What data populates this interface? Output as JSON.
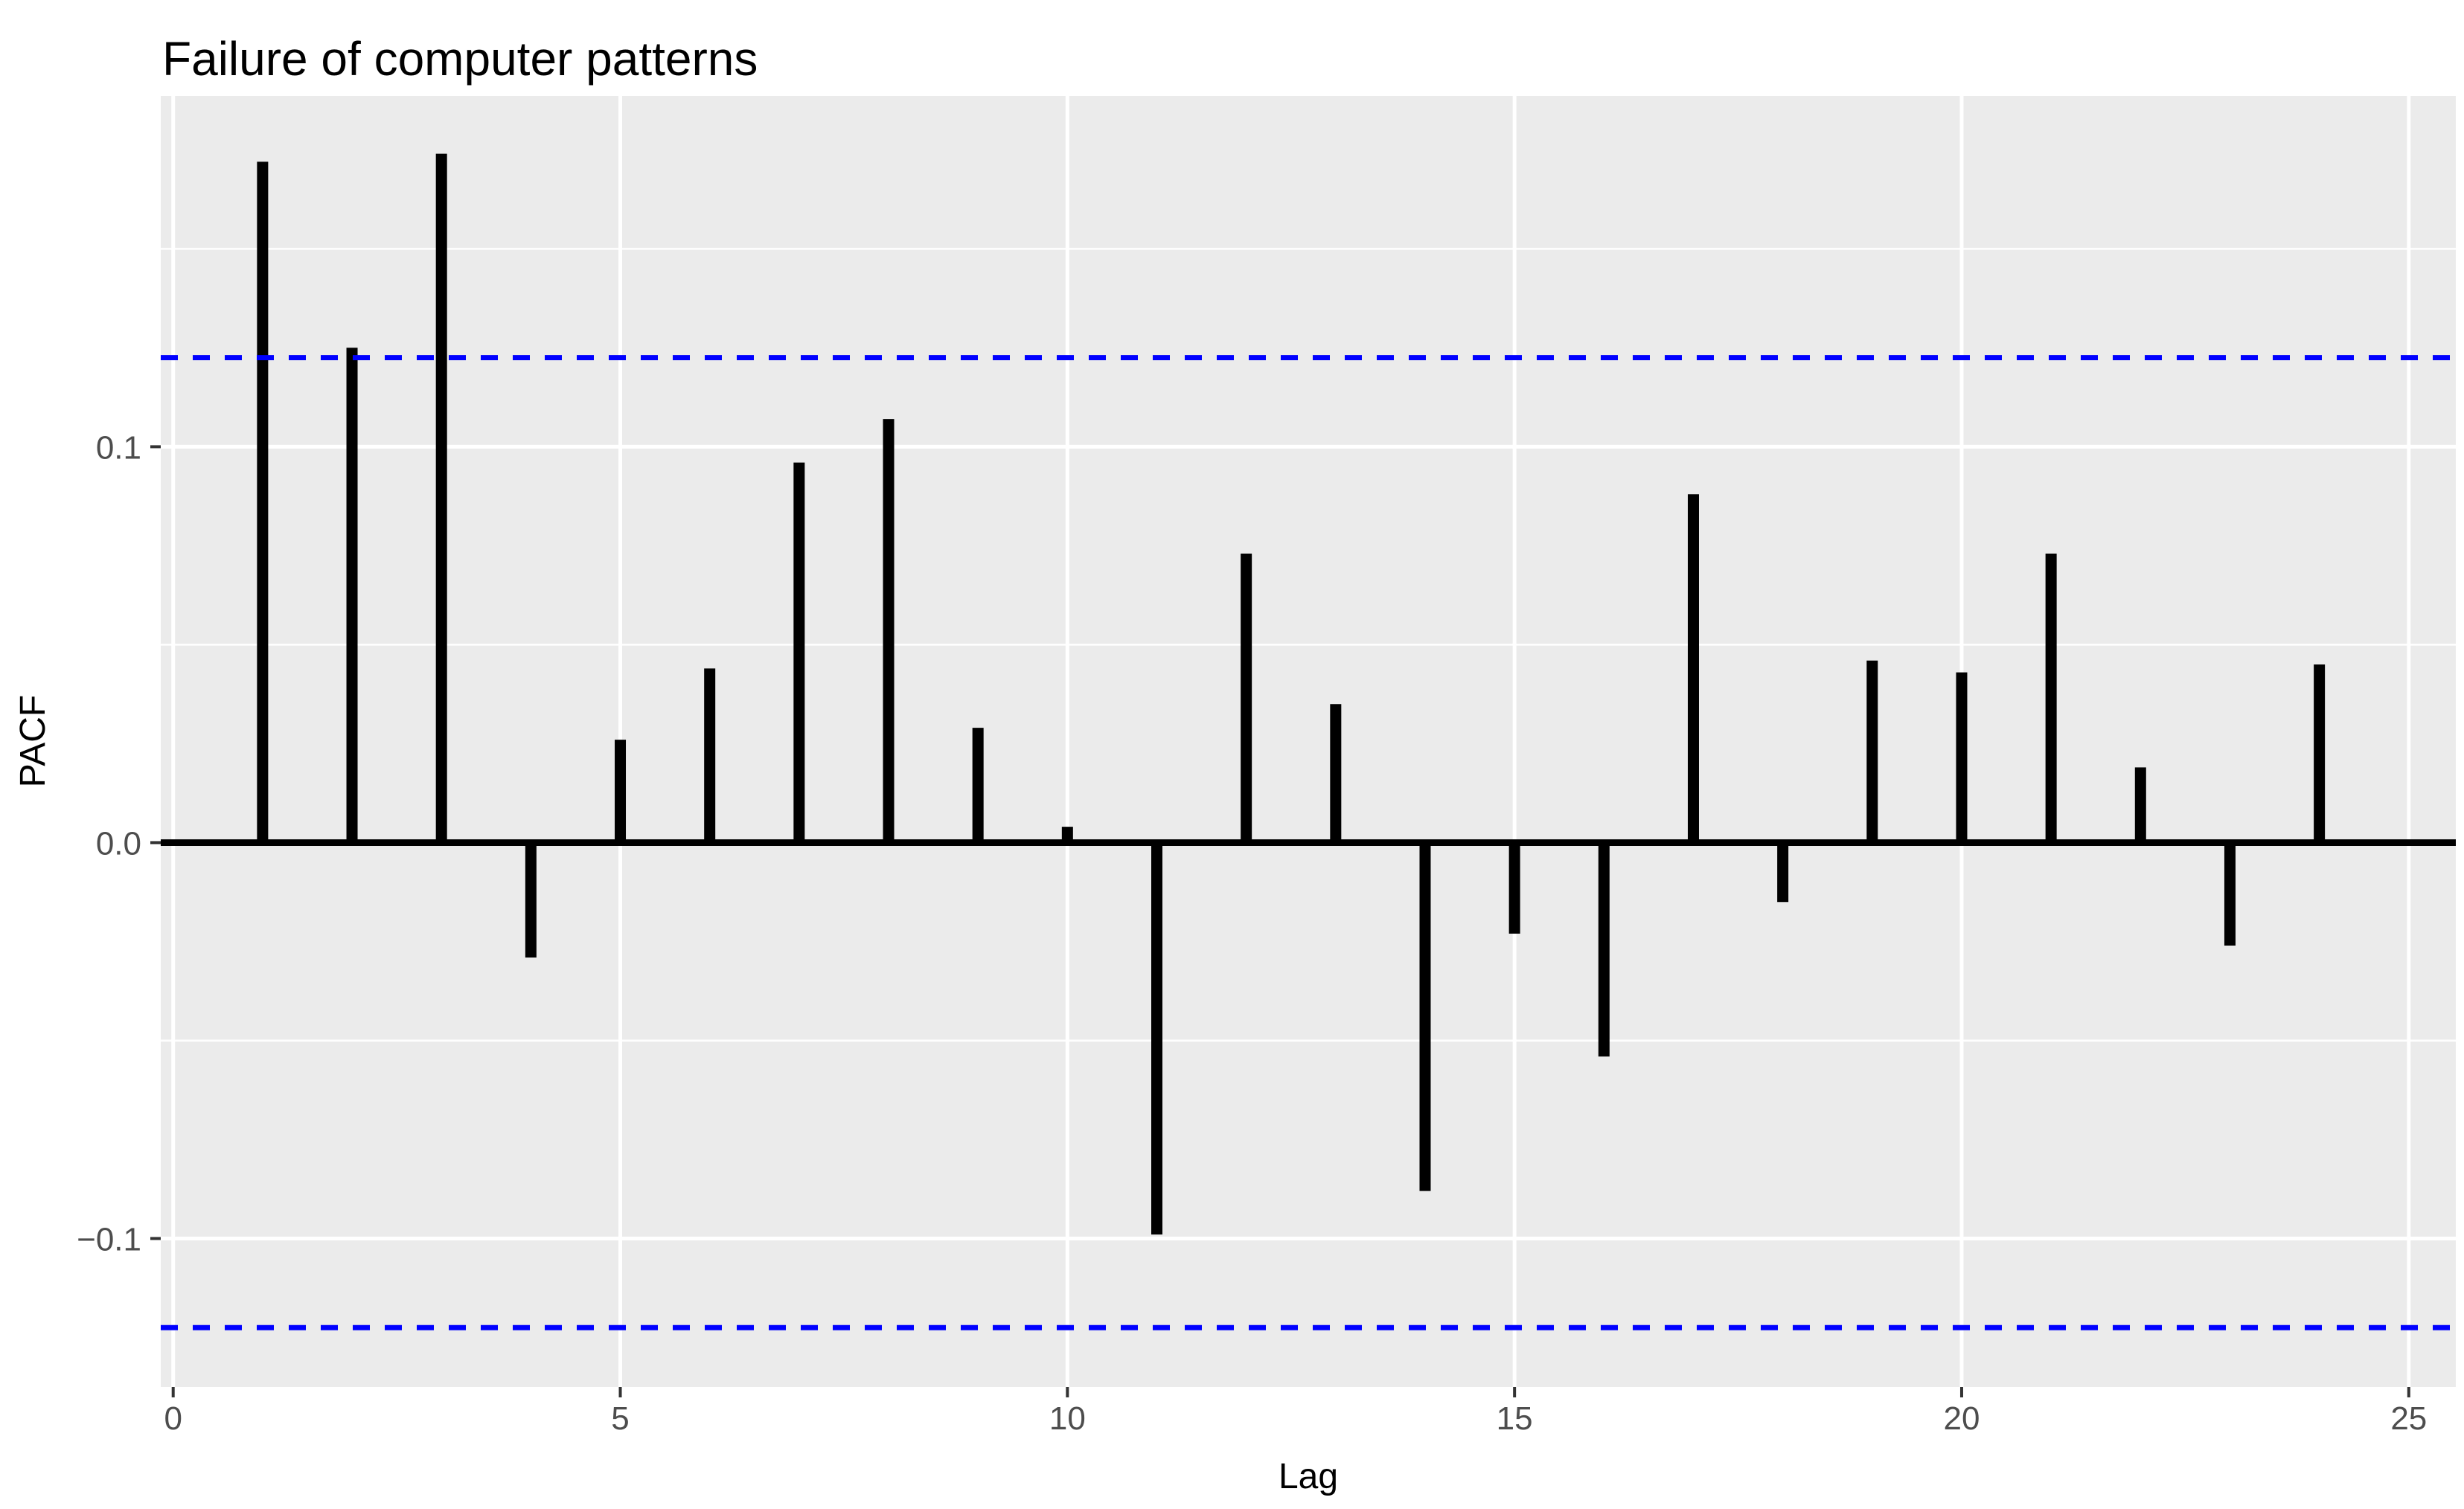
{
  "title": "Failure of computer patterns",
  "chart_data": {
    "type": "bar",
    "title": "Failure of computer patterns",
    "xlabel": "Lag",
    "ylabel": "PACF",
    "x": [
      1,
      2,
      3,
      4,
      5,
      6,
      7,
      8,
      9,
      10,
      11,
      12,
      13,
      14,
      15,
      16,
      17,
      18,
      19,
      20,
      21,
      22,
      23,
      24
    ],
    "values": [
      0.172,
      0.125,
      0.174,
      -0.029,
      0.026,
      0.044,
      0.096,
      0.107,
      0.029,
      0.004,
      -0.099,
      0.073,
      0.035,
      -0.088,
      -0.023,
      -0.054,
      0.088,
      -0.015,
      0.046,
      0.043,
      0.073,
      0.019,
      -0.026,
      0.045
    ],
    "conf_upper": 0.1225,
    "conf_lower": -0.1225,
    "x_ticks": [
      {
        "label": "0",
        "value": 0
      },
      {
        "label": "5",
        "value": 5
      },
      {
        "label": "10",
        "value": 10
      },
      {
        "label": "15",
        "value": 15
      },
      {
        "label": "20",
        "value": 20
      },
      {
        "label": "25",
        "value": 25
      }
    ],
    "y_ticks": [
      {
        "label": "0.1",
        "value": 0.1
      },
      {
        "label": "0.0",
        "value": 0.0
      },
      {
        "label": "−0.1",
        "value": -0.1
      }
    ],
    "y_major_gridlines": [
      0.1,
      0.0,
      -0.1
    ],
    "y_minor_gridlines": [
      0.15,
      0.05,
      -0.05
    ],
    "x_major_gridlines": [
      0,
      5,
      10,
      15,
      20,
      25
    ],
    "xlim": [
      -0.139,
      25.526
    ],
    "ylim": [
      -0.1375,
      0.1886
    ],
    "grid": true,
    "legend": false
  },
  "colors": {
    "panel_background": "#EBEBEB",
    "gridline": "#FFFFFF",
    "bar": "#000000",
    "zero_line": "#000000",
    "confidence_line": "#0000FF",
    "tick_label": "#4D4D4D",
    "tick_mark": "#333333",
    "title_text": "#000000",
    "axis_title_text": "#000000"
  }
}
